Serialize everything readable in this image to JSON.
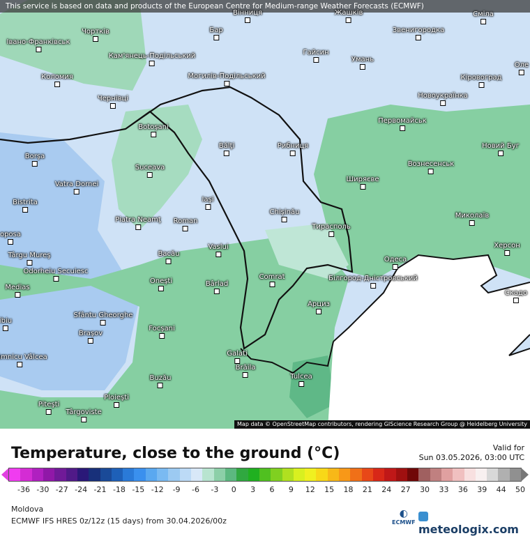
{
  "map": {
    "disclaimer": "This service is based on data and products of the European Centre for Medium-range Weather Forecasts (ECMWF)",
    "attribution": "Map data © OpenStreetMap contributors, rendering GIScience Research Group @ Heidelberg University",
    "colors": {
      "cold": "#cfe2f6",
      "colder": "#a9cbf0",
      "mild": "#a6dcc0",
      "green": "#86cfa2",
      "deep_green": "#5fb887",
      "sea": "#ffffff",
      "border": "#111111"
    },
    "cities": [
      "Вінниця",
      "Жашків",
      "Сміла",
      "Чортків",
      "Бар",
      "Звенигородка",
      "Івано-Франківськ",
      "Гайсин",
      "Кам'янець-Подільський",
      "Умань",
      "Оле",
      "Коломия",
      "Могилів-Подільський",
      "Кіровоград",
      "Чернівці",
      "Новоукраїнка",
      "Первомайськ",
      "Botoşani",
      "Bălţi",
      "Рибниця",
      "Новий Буг",
      "Borşa",
      "Suceava",
      "Вознесенськ",
      "Vatra Dornei",
      "Ширяєве",
      "Iaşi",
      "Bistrita",
      "Chişinău",
      "Piatra Neamţ",
      "Roman",
      "Миколаїв",
      "Тирасполь",
      "ороѕа",
      "Vaslui",
      "Bacău",
      "Херсон",
      "Târgu Mureş",
      "Odorheiu Secuiesc",
      "Одеса",
      "Oneşti",
      "Bârlad",
      "Comrat",
      "Білгород-Дністровський",
      "Скадо",
      "Medias",
      "Арциз",
      "Sfântu Gheorghe",
      "ibiu",
      "Braşov",
      "Focşani",
      "Galati",
      "Brăila",
      "Tulcea",
      "Râmnicu Vâlcea",
      "Buzău",
      "Ploieşti",
      "Piteşti",
      "Târgoviste"
    ]
  },
  "header": {
    "title": "Temperature, close to the ground (°C)",
    "valid_label": "Valid for",
    "valid_time": "Sun 03.05.2026, 03:00 UTC"
  },
  "legend": {
    "ticks": [
      "-36",
      "-30",
      "-27",
      "-24",
      "-21",
      "-18",
      "-15",
      "-12",
      "-9",
      "-6",
      "-3",
      "0",
      "3",
      "6",
      "9",
      "12",
      "15",
      "18",
      "21",
      "24",
      "27",
      "30",
      "33",
      "36",
      "39",
      "44",
      "50"
    ],
    "colors": [
      "#f03cf0",
      "#d42cd4",
      "#b020c0",
      "#9018a8",
      "#701a98",
      "#501a88",
      "#2a1878",
      "#18307a",
      "#1a4a98",
      "#1e60b8",
      "#2a7ad8",
      "#3a90ee",
      "#5aa8f0",
      "#7abaf2",
      "#9ccaf2",
      "#bcdaf6",
      "#d8e8f8",
      "#b8e4d0",
      "#8ccfa8",
      "#5cb880",
      "#30a840",
      "#20b020",
      "#50c020",
      "#80d020",
      "#b0e020",
      "#d8f020",
      "#f0f020",
      "#f8d818",
      "#f8b818",
      "#f89818",
      "#f07018",
      "#e84818",
      "#d82818",
      "#c01818",
      "#a01010",
      "#700808",
      "#a06060",
      "#c08080",
      "#e0a0a0",
      "#f0c0c0",
      "#f8e0e0",
      "#f8f0f0",
      "#d8d8d8",
      "#b0b0b0",
      "#909090"
    ]
  },
  "footer": {
    "region": "Moldova",
    "model": "ECMWF IFS HRES 0z/12z (15 days) from  30.04.2026/00z",
    "ecmwf_logo": "ECMWF",
    "brand": "meteologix.com"
  }
}
